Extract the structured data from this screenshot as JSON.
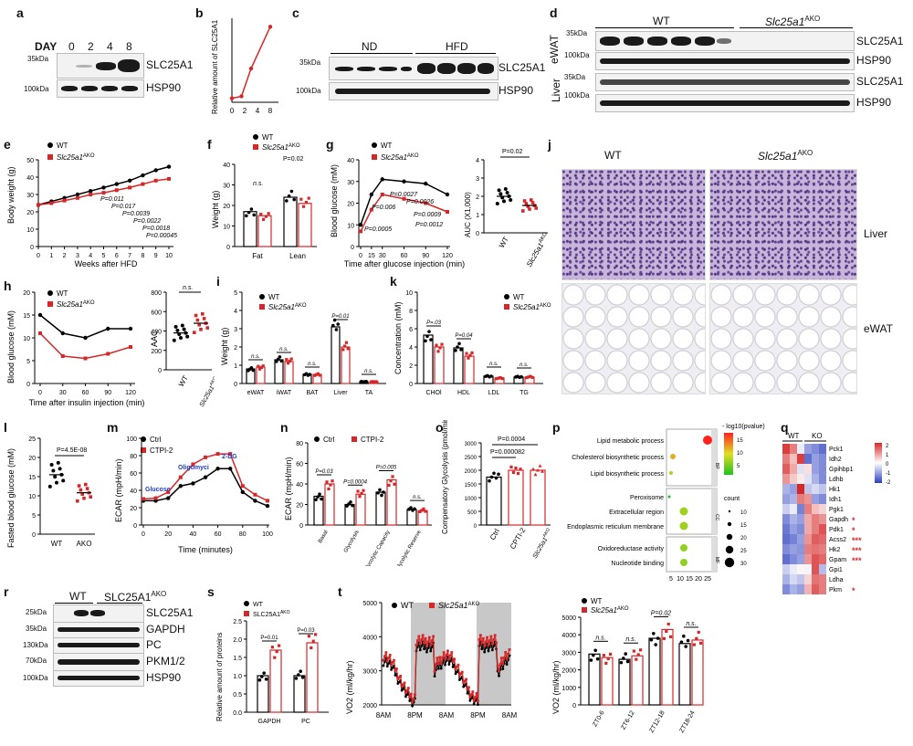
{
  "panels": {
    "a": {
      "letter": "a",
      "day_label": "DAY",
      "days": [
        "0",
        "2",
        "4",
        "8"
      ],
      "row1": "SLC25A1",
      "row2": "HSP90",
      "kda1": "35kDa",
      "kda2": "100kDa"
    },
    "b": {
      "letter": "b",
      "ylabel": "Relative amount of SLC25A1",
      "x": [
        "0",
        "2",
        "4",
        "8"
      ]
    },
    "c": {
      "letter": "c",
      "group1": "ND",
      "group2": "HFD",
      "row1": "SLC25A1",
      "row2": "HSP90",
      "kda1": "35kDa",
      "kda2": "100kDa"
    },
    "d": {
      "letter": "d",
      "group1": "WT",
      "group2": "Slc25a1",
      "group2_sup": "AKO",
      "tissue1": "eWAT",
      "tissue2": "Liver",
      "rows": [
        "SLC25A1",
        "HSP90",
        "SLC25A1",
        "HSP90"
      ],
      "kda": [
        "35kDa",
        "100kDa",
        "35kDa",
        "100kDa"
      ]
    },
    "e": {
      "letter": "e",
      "ylabel": "Body weight (g)",
      "xlabel": "Weeks after HFD",
      "legend": [
        "WT",
        "Slc25a1"
      ],
      "legend_sup": "AKO",
      "pvals": [
        "P=0.011",
        "P=0.017",
        "P=0.0039",
        "P=0.0022",
        "P=0.0018",
        "P=0.00045"
      ],
      "xticks": [
        "0",
        "1",
        "2",
        "3",
        "4",
        "5",
        "6",
        "7",
        "8",
        "9",
        "10"
      ],
      "yticks": [
        "0",
        "10",
        "20",
        "30",
        "40",
        "50"
      ]
    },
    "f": {
      "letter": "f",
      "ylabel": "Weight (g)",
      "legend": [
        "WT",
        "Slc25a1"
      ],
      "legend_sup": "AKO",
      "cats": [
        "Fat",
        "Lean"
      ],
      "ns": "n.s.",
      "p": "P=0.02",
      "yticks": [
        "0",
        "10",
        "20",
        "30",
        "40"
      ]
    },
    "g": {
      "letter": "g",
      "ylabel": "Blood glucose (mM)",
      "xlabel": "Time after glucose injection (min)",
      "legend": [
        "WT",
        "Slc25a1"
      ],
      "legend_sup": "AKO",
      "pvals": [
        "P=0.0027",
        "P=0.006",
        "P=0.0026",
        "P=0.0009",
        "P=0.0005",
        "P=0.0012"
      ],
      "xticks": [
        "0",
        "15",
        "30",
        "60",
        "90",
        "120"
      ],
      "yticks": [
        "0",
        "10",
        "20",
        "30",
        "40"
      ],
      "auc_label": "AUC (X1,000)",
      "auc_p": "P=0.02",
      "auc_yticks": [
        "0",
        "1",
        "2",
        "3",
        "4"
      ],
      "auc_x": [
        "WT",
        "Slc25a1"
      ]
    },
    "h": {
      "letter": "h",
      "ylabel": "Blood glucose (mM)",
      "xlabel": "Time after insulin injection (min)",
      "legend": [
        "WT",
        "Slc25a1"
      ],
      "legend_sup": "AKO",
      "xticks": [
        "0",
        "30",
        "60",
        "90",
        "120"
      ],
      "yticks": [
        "0",
        "5",
        "10",
        "15",
        "20"
      ],
      "aac_label": "AAC",
      "aac_ns": "n.s.",
      "aac_yticks": [
        "0",
        "200",
        "400",
        "600",
        "800"
      ],
      "aac_x": [
        "WT",
        "Slc25a1"
      ]
    },
    "i": {
      "letter": "i",
      "ylabel": "Weight (g)",
      "legend": [
        "WT",
        "Slc25a1"
      ],
      "legend_sup": "AKO",
      "cats": [
        "eWAT",
        "iWAT",
        "BAT",
        "Liver",
        "TA"
      ],
      "labels": [
        "n.s.",
        "n.s.",
        "n.s.",
        "P=0.01",
        "n.s."
      ],
      "yticks": [
        "0",
        "1",
        "2",
        "3",
        "4",
        "5"
      ]
    },
    "j": {
      "letter": "j",
      "col1": "WT",
      "col2": "Slc25a1",
      "col2_sup": "AKO",
      "row1": "Liver",
      "row2": "eWAT"
    },
    "k": {
      "letter": "k",
      "ylabel": "Concentration (mM)",
      "legend": [
        "WT",
        "Slc25a1"
      ],
      "legend_sup": "AKO",
      "cats": [
        "CHOl",
        "HDL",
        "LDL",
        "TG"
      ],
      "labels": [
        "P=.03",
        "P=0.04",
        "n.s.",
        "n.s."
      ],
      "yticks": [
        "0",
        "2",
        "4",
        "6",
        "8",
        "10"
      ]
    },
    "l": {
      "letter": "l",
      "ylabel": "Fasted blood glucose (mM)",
      "p": "P=4.5E-08",
      "cats": [
        "WT",
        "AKO"
      ],
      "yticks": [
        "0",
        "5",
        "10",
        "15",
        "20",
        "25"
      ]
    },
    "m": {
      "letter": "m",
      "ylabel": "ECAR (mpH/min)",
      "xlabel": "Time (minutes)",
      "legend": [
        "Ctrl",
        "CTPI-2"
      ],
      "ann": [
        "Glucose",
        "Oligomyci",
        "2-DG"
      ],
      "xticks": [
        "0",
        "20",
        "40",
        "60",
        "80",
        "100"
      ],
      "yticks": [
        "0",
        "20",
        "40",
        "60",
        "80",
        "100"
      ]
    },
    "n": {
      "letter": "n",
      "ylabel": "ECAR (mpH/min)",
      "legend": [
        "Ctrl",
        "CTPI-2"
      ],
      "cats": [
        "Basal",
        "Glycolysis",
        "Glycolytic Capacity",
        "Glycolytic Reserve"
      ],
      "labels": [
        "P=0.03",
        "P=0.0004",
        "P=0.005",
        "n.s."
      ],
      "yticks": [
        "0",
        "20",
        "40",
        "60",
        "80"
      ]
    },
    "o": {
      "letter": "o",
      "ylabel": "Compensatory Glycolysis (pmol/min)",
      "p1": "P=0.0004",
      "p2": "P=0.000082",
      "cats": [
        "Ctrl",
        "CPTI-2",
        "Slc25a1"
      ],
      "cat_sup": "AKO",
      "yticks": [
        "0",
        "500",
        "1000",
        "1500",
        "2000",
        "2500",
        "3000"
      ]
    },
    "p": {
      "letter": "p",
      "terms": [
        "Lipid metabolic process",
        "Cholesterol biosynthetic process",
        "Lipid biosynthetic process",
        "Peroxisome",
        "Extracellular region",
        "Endoplasmic reticulum membrane",
        "Oxidoreductase activity",
        "Nucleotide binding"
      ],
      "sections": [
        "BP",
        "CC",
        "MF"
      ],
      "xticks": [
        "5",
        "10",
        "15",
        "20",
        "25"
      ],
      "scale_title": "- log10(pvalue)",
      "scale_ticks": [
        "15",
        "10",
        "5"
      ],
      "count_title": "count",
      "counts": [
        "10",
        "15",
        "20",
        "25",
        "30"
      ]
    },
    "q": {
      "letter": "q",
      "groups": [
        "WT",
        "KO"
      ],
      "genes": [
        "Pck1",
        "Idh2",
        "Gpihbp1",
        "Ldhb",
        "Hk1",
        "Idh1",
        "Pgk1",
        "Gapdh",
        "Pdk1",
        "Acss2",
        "Hk2",
        "Gpam",
        "Gpi1",
        "Ldha",
        "Pkm"
      ],
      "stars": [
        "",
        "",
        "",
        "",
        "",
        "",
        "",
        "*",
        "*",
        "***",
        "***",
        "***",
        "",
        "",
        "*"
      ],
      "scale": [
        "2",
        "1",
        "0",
        "-1",
        "-2"
      ]
    },
    "r": {
      "letter": "r",
      "group1": "WT",
      "group2": "SLC25A1",
      "group2_sup": "AKO",
      "rows": [
        "SLC25A1",
        "GAPDH",
        "PC",
        "PKM1/2",
        "HSP90"
      ],
      "kda": [
        "25kDa",
        "35kDa",
        "130kDa",
        "70kDa",
        "100kDa"
      ]
    },
    "s": {
      "letter": "s",
      "ylabel": "Relative amount of proteins",
      "legend": [
        "WT",
        "SLC25A1"
      ],
      "legend_sup": "AKO",
      "cats": [
        "GAPDH",
        "PC"
      ],
      "labels": [
        "P=0.01",
        "P=0.03"
      ],
      "yticks": [
        "0.0",
        "0.5",
        "1.0",
        "1.5",
        "2.0",
        "2.5"
      ]
    },
    "t": {
      "letter": "t",
      "ylabel": "VO2 (ml/kg/hr)",
      "legend": [
        "WT",
        "Slc25a1"
      ],
      "legend_sup": "AKO",
      "xticks": [
        "8AM",
        "8PM",
        "8AM",
        "8PM",
        "8AM"
      ],
      "yticks": [
        "2000",
        "3000",
        "4000",
        "5000"
      ],
      "bar_ylabel": "VO2 (ml/kg/hr)",
      "bar_cats": [
        "ZT0-6",
        "ZT6-12",
        "ZT12-18",
        "ZT18-24"
      ],
      "bar_labels": [
        "n.s.",
        "n.s.",
        "P=0.02",
        "n.s."
      ],
      "bar_yticks": [
        "0",
        "1000",
        "2000",
        "3000",
        "4000",
        "5000"
      ]
    }
  },
  "chart_data": [
    {
      "type": "line",
      "panel": "b",
      "x": [
        0,
        2,
        4,
        8
      ],
      "series": [
        {
          "values": [
            1.0,
            1.5,
            8.5,
            19.0
          ]
        }
      ],
      "ylim": [
        0,
        20
      ],
      "ylabel": "Relative amount of SLC25A1"
    },
    {
      "type": "line",
      "panel": "e",
      "x": [
        0,
        1,
        2,
        3,
        4,
        5,
        6,
        7,
        8,
        9,
        10
      ],
      "series": [
        {
          "name": "WT",
          "values": [
            24,
            26,
            28,
            30,
            32,
            34,
            36,
            38,
            41,
            44,
            46
          ]
        },
        {
          "name": "Slc25a1AKO",
          "values": [
            24,
            25,
            26.5,
            28,
            30,
            31,
            32.5,
            34,
            36,
            38,
            39
          ]
        }
      ],
      "ylim": [
        0,
        50
      ]
    },
    {
      "type": "bar",
      "panel": "f",
      "categories": [
        "Fat",
        "Lean"
      ],
      "series": [
        {
          "name": "WT",
          "values": [
            17,
            24
          ]
        },
        {
          "name": "Slc25a1AKO",
          "values": [
            15,
            21
          ]
        }
      ],
      "ylim": [
        0,
        40
      ]
    },
    {
      "type": "line",
      "panel": "g",
      "x": [
        0,
        15,
        30,
        60,
        90,
        120
      ],
      "series": [
        {
          "name": "WT",
          "values": [
            10,
            24,
            31,
            30,
            29,
            24
          ]
        },
        {
          "name": "Slc25a1AKO",
          "values": [
            7,
            17,
            24,
            22,
            20,
            16
          ]
        }
      ],
      "ylim": [
        0,
        40
      ]
    },
    {
      "type": "scatter",
      "panel": "g-auc",
      "categories": [
        "WT",
        "Slc25a1AKO"
      ],
      "values": [
        2.0,
        1.5
      ],
      "ylim": [
        0,
        4
      ]
    },
    {
      "type": "line",
      "panel": "h",
      "x": [
        0,
        30,
        60,
        90,
        120
      ],
      "series": [
        {
          "name": "WT",
          "values": [
            15,
            11,
            10,
            12,
            12
          ]
        },
        {
          "name": "Slc25a1AKO",
          "values": [
            11,
            6,
            5.5,
            6.5,
            8
          ]
        }
      ],
      "ylim": [
        0,
        20
      ]
    },
    {
      "type": "scatter",
      "panel": "h-aac",
      "categories": [
        "WT",
        "Slc25a1AKO"
      ],
      "values": [
        380,
        480
      ],
      "ylim": [
        0,
        800
      ]
    },
    {
      "type": "bar",
      "panel": "i",
      "categories": [
        "eWAT",
        "iWAT",
        "BAT",
        "Liver",
        "TA"
      ],
      "series": [
        {
          "name": "WT",
          "values": [
            0.8,
            1.3,
            0.5,
            3.1,
            0.1
          ]
        },
        {
          "name": "Slc25a1AKO",
          "values": [
            0.9,
            1.2,
            0.5,
            2.0,
            0.1
          ]
        }
      ],
      "ylim": [
        0,
        5
      ]
    },
    {
      "type": "bar",
      "panel": "k",
      "categories": [
        "CHOl",
        "HDL",
        "LDL",
        "TG"
      ],
      "series": [
        {
          "name": "WT",
          "values": [
            5.3,
            3.9,
            0.8,
            0.7
          ]
        },
        {
          "name": "Slc25a1AKO",
          "values": [
            4.0,
            3.0,
            0.6,
            0.7
          ]
        }
      ],
      "ylim": [
        0,
        10
      ]
    },
    {
      "type": "scatter",
      "panel": "l",
      "categories": [
        "WT",
        "AKO"
      ],
      "values": [
        15.5,
        10.8
      ],
      "ylim": [
        0,
        25
      ]
    },
    {
      "type": "line",
      "panel": "m",
      "x": [
        0,
        10,
        20,
        30,
        40,
        50,
        60,
        70,
        80,
        90,
        100
      ],
      "series": [
        {
          "name": "Ctrl",
          "values": [
            28,
            28,
            31,
            45,
            48,
            55,
            65,
            65,
            38,
            28,
            22
          ]
        },
        {
          "name": "CTPI-2",
          "values": [
            30,
            31,
            38,
            55,
            70,
            78,
            82,
            82,
            45,
            35,
            28
          ]
        }
      ],
      "ylim": [
        0,
        100
      ]
    },
    {
      "type": "bar",
      "panel": "n",
      "categories": [
        "Basal",
        "Glycolysis",
        "Glycolytic Capacity",
        "Glycolytic Reserve"
      ],
      "series": [
        {
          "name": "Ctrl",
          "values": [
            28,
            20,
            32,
            15
          ]
        },
        {
          "name": "CTPI-2",
          "values": [
            40,
            30,
            44,
            14
          ]
        }
      ],
      "ylim": [
        0,
        80
      ]
    },
    {
      "type": "bar",
      "panel": "o",
      "categories": [
        "Ctrl",
        "CPTI-2",
        "Slc25a1AKO"
      ],
      "values": [
        1750,
        2000,
        2000
      ],
      "ylim": [
        0,
        3000
      ]
    },
    {
      "type": "scatter",
      "panel": "p",
      "categories": [
        "Lipid metabolic process",
        "Cholesterol biosynthetic process",
        "Lipid biosynthetic process",
        "Peroxisome",
        "Extracellular region",
        "Endoplasmic reticulum membrane",
        "Oxidoreductase activity",
        "Nucleotide binding"
      ],
      "values": [
        25,
        6,
        5,
        4,
        12,
        12,
        12,
        12
      ],
      "xlim": [
        5,
        25
      ]
    },
    {
      "type": "heatmap",
      "panel": "q",
      "categories": [
        "Pck1",
        "Idh2",
        "Gpihbp1",
        "Ldhb",
        "Hk1",
        "Idh1",
        "Pgk1",
        "Gapdh",
        "Pdk1",
        "Acss2",
        "Hk2",
        "Gpam",
        "Gpi1",
        "Ldha",
        "Pkm"
      ],
      "series": [
        {
          "name": "WT1",
          "values": [
            1.8,
            1.2,
            1.5,
            1.0,
            -0.8,
            -1.0,
            -0.5,
            -1.2,
            -1.4,
            -1.5,
            -1.2,
            -1.5,
            -0.5,
            -0.8,
            -1.2
          ]
        },
        {
          "name": "WT2",
          "values": [
            1.2,
            0.6,
            0.8,
            0.5,
            -1.0,
            -0.8,
            -0.2,
            -0.8,
            -1.0,
            -1.3,
            -1.0,
            -1.2,
            -0.2,
            -0.4,
            -0.8
          ]
        },
        {
          "name": "WT3",
          "values": [
            -0.2,
            1.8,
            -0.3,
            0.2,
            2.0,
            1.2,
            -1.3,
            -1.0,
            -1.2,
            -1.0,
            -1.1,
            -1.0,
            0.1,
            -0.6,
            -1.0
          ]
        },
        {
          "name": "KO1",
          "values": [
            -1.0,
            -1.5,
            0.3,
            -0.3,
            -0.6,
            1.0,
            1.2,
            0.8,
            0.8,
            1.0,
            1.2,
            1.0,
            -0.1,
            0.4,
            0.7
          ]
        },
        {
          "name": "KO2",
          "values": [
            -1.2,
            -1.0,
            -1.0,
            -0.8,
            -0.4,
            -1.0,
            0.6,
            1.2,
            1.2,
            1.5,
            1.3,
            1.6,
            1.6,
            1.3,
            1.5
          ]
        },
        {
          "name": "KO3",
          "values": [
            -1.5,
            -1.2,
            -1.2,
            -1.2,
            -0.6,
            -1.2,
            0.4,
            1.0,
            1.6,
            1.4,
            1.2,
            1.4,
            -0.7,
            1.2,
            1.2
          ]
        }
      ]
    },
    {
      "type": "bar",
      "panel": "s",
      "categories": [
        "GAPDH",
        "PC"
      ],
      "series": [
        {
          "name": "WT",
          "values": [
            1.0,
            1.0
          ]
        },
        {
          "name": "SLC25A1AKO",
          "values": [
            1.7,
            1.9
          ]
        }
      ],
      "ylim": [
        0,
        2.5
      ]
    },
    {
      "type": "line",
      "panel": "t",
      "x": [
        0,
        6,
        12,
        18,
        24,
        30,
        36,
        42,
        48
      ],
      "series": [
        {
          "name": "WT",
          "values": [
            3400,
            2600,
            3700,
            3300,
            3400,
            2600,
            3700,
            3400,
            3300
          ]
        },
        {
          "name": "Slc25a1AKO",
          "values": [
            3500,
            2700,
            3900,
            3600,
            3500,
            2700,
            4000,
            3700,
            3500
          ]
        }
      ],
      "ylim": [
        2000,
        5000
      ]
    },
    {
      "type": "bar",
      "panel": "t-bar",
      "categories": [
        "ZT0-6",
        "ZT6-12",
        "ZT12-18",
        "ZT18-24"
      ],
      "series": [
        {
          "name": "WT",
          "values": [
            2900,
            2600,
            3800,
            3500
          ]
        },
        {
          "name": "Slc25a1AKO",
          "values": [
            2700,
            2800,
            4300,
            3700
          ]
        }
      ],
      "ylim": [
        0,
        5000
      ]
    }
  ]
}
